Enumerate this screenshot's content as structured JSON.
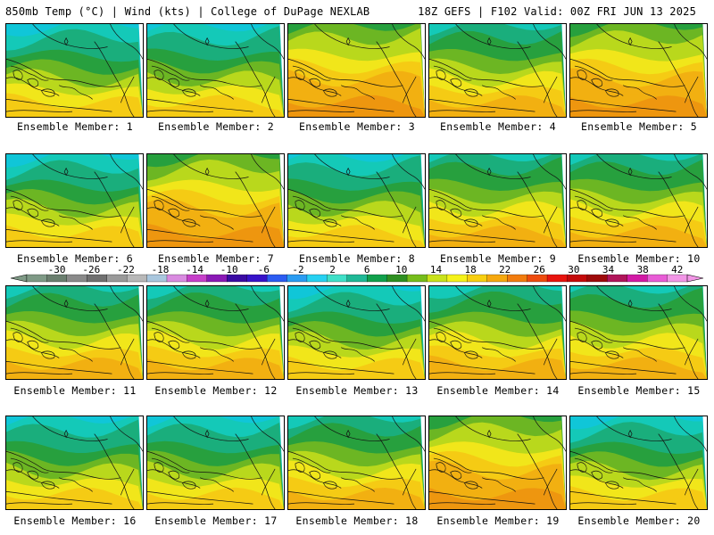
{
  "header": {
    "left": "850mb Temp (°C) | Wind (kts) | College of DuPage NEXLAB",
    "right": "18Z GEFS | F102 Valid: 00Z FRI JUN 13 2025"
  },
  "members": [
    {
      "label": "Ensemble Member: 1",
      "tint": "cold"
    },
    {
      "label": "Ensemble Member: 2",
      "tint": "cold"
    },
    {
      "label": "Ensemble Member: 3",
      "tint": "warm"
    },
    {
      "label": "Ensemble Member: 4",
      "tint": "mid"
    },
    {
      "label": "Ensemble Member: 5",
      "tint": "warm"
    },
    {
      "label": "Ensemble Member: 6",
      "tint": "cold"
    },
    {
      "label": "Ensemble Member: 7",
      "tint": "warm"
    },
    {
      "label": "Ensemble Member: 8",
      "tint": "cold"
    },
    {
      "label": "Ensemble Member: 9",
      "tint": "mid"
    },
    {
      "label": "Ensemble Member: 10",
      "tint": "mid"
    },
    {
      "label": "Ensemble Member: 11",
      "tint": "mid"
    },
    {
      "label": "Ensemble Member: 12",
      "tint": "mid"
    },
    {
      "label": "Ensemble Member: 13",
      "tint": "cold"
    },
    {
      "label": "Ensemble Member: 14",
      "tint": "mid"
    },
    {
      "label": "Ensemble Member: 15",
      "tint": "mid"
    },
    {
      "label": "Ensemble Member: 16",
      "tint": "cold"
    },
    {
      "label": "Ensemble Member: 17",
      "tint": "cold"
    },
    {
      "label": "Ensemble Member: 18",
      "tint": "mid"
    },
    {
      "label": "Ensemble Member: 19",
      "tint": "warm"
    },
    {
      "label": "Ensemble Member: 20",
      "tint": "cold"
    }
  ],
  "colorbar": {
    "labels": [
      "-30",
      "-26",
      "-22",
      "-18",
      "-14",
      "-10",
      "-6",
      "-2",
      "2",
      "6",
      "10",
      "14",
      "18",
      "22",
      "26",
      "30",
      "34",
      "38",
      "42"
    ],
    "colors": [
      "#7f9a86",
      "#6b7f6f",
      "#8a8a8a",
      "#707070",
      "#9a9a9a",
      "#b8b8b8",
      "#a9c7de",
      "#d98be0",
      "#c63fc9",
      "#8a19b5",
      "#3a0ba3",
      "#3713c9",
      "#2c5cf2",
      "#2b9cf2",
      "#27d1f2",
      "#3fe0c8",
      "#1fb896",
      "#11a04c",
      "#2e8f22",
      "#76bd1c",
      "#c9e21b",
      "#f5f21a",
      "#f8cf10",
      "#f6a80e",
      "#f27c0e",
      "#ee4b0e",
      "#e8140e",
      "#c40a0a",
      "#9e0a0a",
      "#b0155a",
      "#d21aa5",
      "#e85cd6",
      "#f296e6"
    ]
  },
  "palette": {
    "land_cold": [
      "#0fc4d6",
      "#14c9b9",
      "#1db48a",
      "#2aa245",
      "#6cb824",
      "#b5d71c",
      "#f0e61a",
      "#f5c915"
    ],
    "land_warm": [
      "#3cad3a",
      "#8fc225",
      "#d2de1a",
      "#f0e61a",
      "#f5cc14",
      "#f3b511",
      "#f09f0f",
      "#ee8c0e"
    ]
  }
}
